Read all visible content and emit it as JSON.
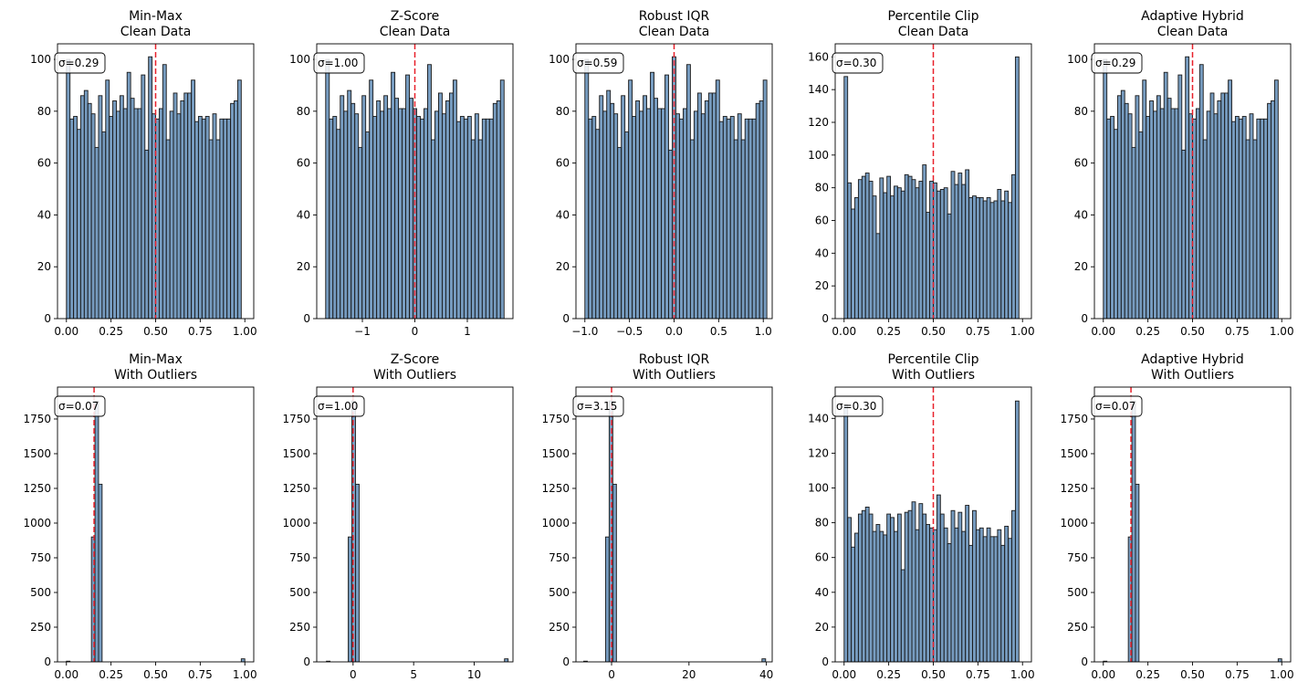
{
  "figure": {
    "bar_fill": "#4a7bab",
    "bar_opacity": 0.75,
    "bar_edge": "#1a1a1a",
    "mean_line_color": "#e8202a"
  },
  "chart_data": [
    {
      "type": "bar",
      "title": [
        "Min-Max",
        "Clean Data"
      ],
      "xlabel": "",
      "ylabel": "",
      "xlim": [
        -0.05,
        1.05
      ],
      "ylim": [
        0,
        106
      ],
      "xticks": [
        0,
        0.25,
        0.5,
        0.75,
        1
      ],
      "xtick_labels": [
        "0.00",
        "0.25",
        "0.50",
        "0.75",
        "1.00"
      ],
      "yticks": [
        0,
        20,
        40,
        60,
        80,
        100
      ],
      "ytick_labels": [
        "0",
        "20",
        "40",
        "60",
        "80",
        "100"
      ],
      "bin_start": 0,
      "bin_width": 0.02,
      "values": [
        100,
        77,
        78,
        73,
        86,
        88,
        83,
        79,
        66,
        86,
        72,
        92,
        78,
        84,
        80,
        86,
        81,
        95,
        85,
        81,
        81,
        94,
        65,
        101,
        79,
        77,
        81,
        98,
        69,
        80,
        87,
        79,
        84,
        87,
        87,
        92,
        76,
        78,
        77,
        78,
        69,
        79,
        69,
        77,
        77,
        77,
        83,
        84,
        92
      ],
      "mean_line": 0.5,
      "annotation": "σ=0.29"
    },
    {
      "type": "bar",
      "title": [
        "Z-Score",
        "Clean Data"
      ],
      "xlabel": "",
      "ylabel": "",
      "xlim": [
        -1.87,
        1.87
      ],
      "ylim": [
        0,
        106
      ],
      "xticks": [
        -1,
        0,
        1
      ],
      "xtick_labels": [
        "−1",
        "0",
        "1"
      ],
      "yticks": [
        0,
        20,
        40,
        60,
        80,
        100
      ],
      "ytick_labels": [
        "0",
        "20",
        "40",
        "60",
        "80",
        "100"
      ],
      "bin_start": -1.7,
      "bin_width": 0.0694,
      "values": [
        100,
        77,
        78,
        73,
        86,
        80,
        88,
        83,
        79,
        66,
        86,
        72,
        92,
        78,
        84,
        80,
        86,
        81,
        95,
        85,
        81,
        81,
        94,
        85,
        81,
        78,
        77,
        81,
        98,
        69,
        80,
        87,
        79,
        84,
        87,
        92,
        76,
        78,
        77,
        78,
        69,
        79,
        69,
        77,
        77,
        77,
        83,
        84,
        92
      ],
      "mean_line": 0,
      "annotation": "σ=1.00"
    },
    {
      "type": "bar",
      "title": [
        "Robust IQR",
        "Clean Data"
      ],
      "xlabel": "",
      "ylabel": "",
      "xlim": [
        -1.1,
        1.1
      ],
      "ylim": [
        0,
        106
      ],
      "xticks": [
        -1,
        -0.5,
        0,
        0.5,
        1
      ],
      "xtick_labels": [
        "−1.0",
        "−0.5",
        "0.0",
        "0.5",
        "1.0"
      ],
      "yticks": [
        0,
        20,
        40,
        60,
        80,
        100
      ],
      "ytick_labels": [
        "0",
        "20",
        "40",
        "60",
        "80",
        "100"
      ],
      "bin_start": -1.0,
      "bin_width": 0.0408,
      "values": [
        100,
        77,
        78,
        73,
        86,
        80,
        88,
        83,
        79,
        66,
        86,
        72,
        92,
        78,
        84,
        80,
        86,
        81,
        95,
        85,
        81,
        81,
        94,
        65,
        101,
        79,
        77,
        81,
        98,
        69,
        80,
        87,
        79,
        84,
        87,
        87,
        92,
        76,
        78,
        77,
        78,
        69,
        79,
        69,
        77,
        77,
        77,
        83,
        84,
        92
      ],
      "mean_line": 0,
      "annotation": "σ=0.59"
    },
    {
      "type": "bar",
      "title": [
        "Percentile Clip",
        "Clean Data"
      ],
      "xlabel": "",
      "ylabel": "",
      "xlim": [
        -0.05,
        1.05
      ],
      "ylim": [
        0,
        168
      ],
      "xticks": [
        0,
        0.25,
        0.5,
        0.75,
        1
      ],
      "xtick_labels": [
        "0.00",
        "0.25",
        "0.50",
        "0.75",
        "1.00"
      ],
      "yticks": [
        0,
        20,
        40,
        60,
        80,
        100,
        120,
        140,
        160
      ],
      "ytick_labels": [
        "0",
        "20",
        "40",
        "60",
        "80",
        "100",
        "120",
        "140",
        "160"
      ],
      "bin_start": 0,
      "bin_width": 0.02,
      "values": [
        148,
        83,
        67,
        74,
        85,
        87,
        89,
        84,
        75,
        52,
        86,
        77,
        87,
        75,
        81,
        80,
        78,
        88,
        87,
        85,
        80,
        84,
        94,
        65,
        84,
        83,
        78,
        79,
        80,
        64,
        90,
        82,
        89,
        82,
        91,
        74,
        75,
        74,
        74,
        72,
        74,
        71,
        72,
        79,
        72,
        78,
        71,
        88,
        160
      ],
      "mean_line": 0.5,
      "annotation": "σ=0.30"
    },
    {
      "type": "bar",
      "title": [
        "Adaptive Hybrid",
        "Clean Data"
      ],
      "xlabel": "",
      "ylabel": "",
      "xlim": [
        -0.05,
        1.05
      ],
      "ylim": [
        0,
        106
      ],
      "xticks": [
        0,
        0.25,
        0.5,
        0.75,
        1
      ],
      "xtick_labels": [
        "0.00",
        "0.25",
        "0.50",
        "0.75",
        "1.00"
      ],
      "yticks": [
        0,
        20,
        40,
        60,
        80,
        100
      ],
      "ytick_labels": [
        "0",
        "20",
        "40",
        "60",
        "80",
        "100"
      ],
      "bin_start": 0,
      "bin_width": 0.02,
      "values": [
        100,
        77,
        78,
        73,
        86,
        88,
        83,
        79,
        66,
        86,
        72,
        92,
        78,
        84,
        80,
        86,
        81,
        95,
        85,
        81,
        81,
        94,
        65,
        101,
        79,
        77,
        81,
        98,
        69,
        80,
        87,
        79,
        84,
        87,
        87,
        92,
        76,
        78,
        77,
        78,
        69,
        79,
        69,
        77,
        77,
        77,
        83,
        84,
        92
      ],
      "mean_line": 0.5,
      "annotation": "σ=0.29"
    },
    {
      "type": "bar",
      "title": [
        "Min-Max",
        "With Outliers"
      ],
      "xlabel": "",
      "ylabel": "",
      "xlim": [
        -0.05,
        1.05
      ],
      "ylim": [
        0,
        1980
      ],
      "xticks": [
        0,
        0.25,
        0.5,
        0.75,
        1
      ],
      "xtick_labels": [
        "0.00",
        "0.25",
        "0.50",
        "0.75",
        "1.00"
      ],
      "yticks": [
        0,
        250,
        500,
        750,
        1000,
        1250,
        1500,
        1750
      ],
      "ytick_labels": [
        "0",
        "250",
        "500",
        "750",
        "1000",
        "1250",
        "1500",
        "1750"
      ],
      "bin_start": 0,
      "bin_width": 0.02,
      "values": [
        5,
        0,
        0,
        0,
        0,
        0,
        0,
        900,
        1880,
        1280,
        0,
        0,
        0,
        0,
        0,
        0,
        0,
        0,
        0,
        0,
        0,
        0,
        0,
        0,
        0,
        0,
        0,
        0,
        0,
        0,
        0,
        0,
        0,
        0,
        0,
        0,
        0,
        0,
        0,
        0,
        0,
        0,
        0,
        0,
        0,
        0,
        0,
        0,
        0,
        22
      ],
      "mean_line": 0.155,
      "annotation": "σ=0.07"
    },
    {
      "type": "bar",
      "title": [
        "Z-Score",
        "With Outliers"
      ],
      "xlabel": "",
      "ylabel": "",
      "xlim": [
        -3.0,
        13.2
      ],
      "ylim": [
        0,
        1980
      ],
      "xticks": [
        0,
        5,
        10
      ],
      "xtick_labels": [
        "0",
        "5",
        "10"
      ],
      "yticks": [
        0,
        250,
        500,
        750,
        1000,
        1250,
        1500,
        1750
      ],
      "ytick_labels": [
        "0",
        "250",
        "500",
        "750",
        "1000",
        "1250",
        "1500",
        "1750"
      ],
      "bin_start": -2.2,
      "bin_width": 0.3,
      "values": [
        5,
        0,
        0,
        0,
        0,
        0,
        900,
        1880,
        1280,
        0,
        0,
        0,
        0,
        0,
        0,
        0,
        0,
        0,
        0,
        0,
        0,
        0,
        0,
        0,
        0,
        0,
        0,
        0,
        0,
        0,
        0,
        0,
        0,
        0,
        0,
        0,
        0,
        0,
        0,
        0,
        0,
        0,
        0,
        0,
        0,
        0,
        0,
        0,
        0,
        22
      ],
      "mean_line": 0,
      "annotation": "σ=1.00"
    },
    {
      "type": "bar",
      "title": [
        "Robust IQR",
        "With Outliers"
      ],
      "xlabel": "",
      "ylabel": "",
      "xlim": [
        -9.2,
        41.5
      ],
      "ylim": [
        0,
        1980
      ],
      "xticks": [
        0,
        20,
        40
      ],
      "xtick_labels": [
        "0",
        "20",
        "40"
      ],
      "yticks": [
        0,
        250,
        500,
        750,
        1000,
        1250,
        1500,
        1750
      ],
      "ytick_labels": [
        "0",
        "250",
        "500",
        "750",
        "1000",
        "1250",
        "1500",
        "1750"
      ],
      "bin_start": -7.2,
      "bin_width": 0.94,
      "values": [
        5,
        0,
        0,
        0,
        0,
        0,
        900,
        1880,
        1280,
        0,
        0,
        0,
        0,
        0,
        0,
        0,
        0,
        0,
        0,
        0,
        0,
        0,
        0,
        0,
        0,
        0,
        0,
        0,
        0,
        0,
        0,
        0,
        0,
        0,
        0,
        0,
        0,
        0,
        0,
        0,
        0,
        0,
        0,
        0,
        0,
        0,
        0,
        0,
        0,
        22
      ],
      "mean_line": 0,
      "annotation": "σ=3.15"
    },
    {
      "type": "bar",
      "title": [
        "Percentile Clip",
        "With Outliers"
      ],
      "xlabel": "",
      "ylabel": "",
      "xlim": [
        -0.05,
        1.05
      ],
      "ylim": [
        0,
        158
      ],
      "xticks": [
        0,
        0.25,
        0.5,
        0.75,
        1
      ],
      "xtick_labels": [
        "0.00",
        "0.25",
        "0.50",
        "0.75",
        "1.00"
      ],
      "yticks": [
        0,
        20,
        40,
        60,
        80,
        100,
        120,
        140
      ],
      "ytick_labels": [
        "0",
        "20",
        "40",
        "60",
        "80",
        "100",
        "120",
        "140"
      ],
      "bin_start": 0,
      "bin_width": 0.02,
      "values": [
        148,
        83,
        66,
        74,
        85,
        87,
        89,
        85,
        75,
        79,
        75,
        73,
        85,
        83,
        75,
        85,
        53,
        86,
        87,
        92,
        76,
        91,
        85,
        79,
        77,
        76,
        96,
        85,
        77,
        68,
        87,
        77,
        86,
        75,
        90,
        67,
        87,
        76,
        77,
        72,
        77,
        72,
        72,
        76,
        67,
        78,
        71,
        87,
        150
      ],
      "mean_line": 0.5,
      "annotation": "σ=0.30"
    },
    {
      "type": "bar",
      "title": [
        "Adaptive Hybrid",
        "With Outliers"
      ],
      "xlabel": "",
      "ylabel": "",
      "xlim": [
        -0.05,
        1.05
      ],
      "ylim": [
        0,
        1980
      ],
      "xticks": [
        0,
        0.25,
        0.5,
        0.75,
        1
      ],
      "xtick_labels": [
        "0.00",
        "0.25",
        "0.50",
        "0.75",
        "1.00"
      ],
      "yticks": [
        0,
        250,
        500,
        750,
        1000,
        1250,
        1500,
        1750
      ],
      "ytick_labels": [
        "0",
        "250",
        "500",
        "750",
        "1000",
        "1250",
        "1500",
        "1750"
      ],
      "bin_start": 0,
      "bin_width": 0.02,
      "values": [
        5,
        0,
        0,
        0,
        0,
        0,
        0,
        900,
        1880,
        1280,
        0,
        0,
        0,
        0,
        0,
        0,
        0,
        0,
        0,
        0,
        0,
        0,
        0,
        0,
        0,
        0,
        0,
        0,
        0,
        0,
        0,
        0,
        0,
        0,
        0,
        0,
        0,
        0,
        0,
        0,
        0,
        0,
        0,
        0,
        0,
        0,
        0,
        0,
        0,
        22
      ],
      "mean_line": 0.155,
      "annotation": "σ=0.07"
    }
  ]
}
